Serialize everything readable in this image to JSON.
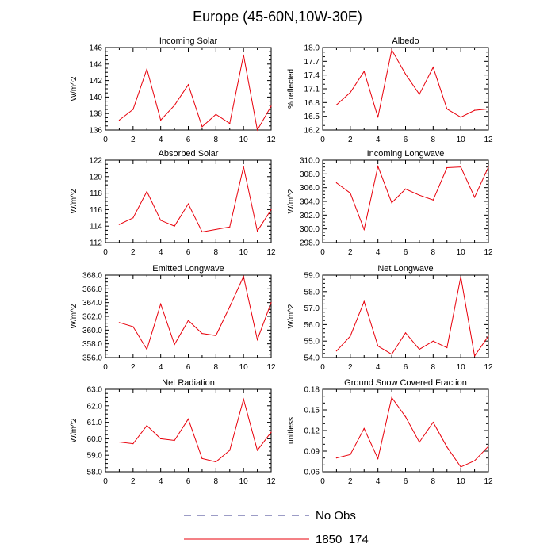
{
  "title": "Europe (45-60N,10W-30E)",
  "legend": [
    {
      "label": "No Obs",
      "style": "dashed",
      "color": "#3a3a8c"
    },
    {
      "label": "1850_174",
      "style": "solid",
      "color": "#e8000b"
    }
  ],
  "chart_data": [
    {
      "type": "line",
      "title": "Incoming Solar",
      "ylabel": "W/m^2",
      "x": [
        1,
        2,
        3,
        4,
        5,
        6,
        7,
        8,
        9,
        10,
        11,
        12
      ],
      "xlim": [
        0,
        12
      ],
      "xticks": [
        0,
        2,
        4,
        6,
        8,
        10,
        12
      ],
      "ylim": [
        136,
        146
      ],
      "yticks": [
        136,
        138,
        140,
        142,
        144,
        146
      ],
      "ydec": 0,
      "series": [
        {
          "name": "1850_174",
          "color": "#e8000b",
          "values": [
            137.2,
            138.5,
            143.4,
            137.2,
            139.0,
            141.5,
            136.4,
            137.9,
            136.8,
            145.1,
            136.0,
            138.9
          ]
        }
      ]
    },
    {
      "type": "line",
      "title": "Albedo",
      "ylabel": "% reflected",
      "x": [
        1,
        2,
        3,
        4,
        5,
        6,
        7,
        8,
        9,
        10,
        11,
        12
      ],
      "xlim": [
        0,
        12
      ],
      "xticks": [
        0,
        2,
        4,
        6,
        8,
        10,
        12
      ],
      "ylim": [
        16.2,
        18.0
      ],
      "yticks": [
        16.2,
        16.5,
        16.8,
        17.1,
        17.4,
        17.7,
        18.0
      ],
      "ydec": 1,
      "series": [
        {
          "name": "1850_174",
          "color": "#e8000b",
          "values": [
            16.75,
            17.02,
            17.48,
            16.48,
            17.95,
            17.42,
            16.98,
            17.57,
            16.66,
            16.48,
            16.63,
            16.66
          ]
        }
      ]
    },
    {
      "type": "line",
      "title": "Absorbed Solar",
      "ylabel": "W/m^2",
      "x": [
        1,
        2,
        3,
        4,
        5,
        6,
        7,
        8,
        9,
        10,
        11,
        12
      ],
      "xlim": [
        0,
        12
      ],
      "xticks": [
        0,
        2,
        4,
        6,
        8,
        10,
        12
      ],
      "ylim": [
        112,
        122
      ],
      "yticks": [
        112,
        114,
        116,
        118,
        120,
        122
      ],
      "ydec": 0,
      "series": [
        {
          "name": "1850_174",
          "color": "#e8000b",
          "values": [
            114.2,
            115.0,
            118.2,
            114.7,
            114.0,
            116.7,
            113.3,
            113.6,
            113.9,
            121.2,
            113.4,
            116.0
          ]
        }
      ]
    },
    {
      "type": "line",
      "title": "Incoming Longwave",
      "ylabel": "W/m^2",
      "x": [
        1,
        2,
        3,
        4,
        5,
        6,
        7,
        8,
        9,
        10,
        11,
        12
      ],
      "xlim": [
        0,
        12
      ],
      "xticks": [
        0,
        2,
        4,
        6,
        8,
        10,
        12
      ],
      "ylim": [
        298,
        310
      ],
      "yticks": [
        298,
        300,
        302,
        304,
        306,
        308,
        310
      ],
      "ydec": 1,
      "series": [
        {
          "name": "1850_174",
          "color": "#e8000b",
          "values": [
            306.7,
            305.2,
            299.9,
            309.1,
            303.8,
            305.8,
            304.9,
            304.2,
            308.9,
            309.0,
            304.6,
            309.0
          ]
        }
      ]
    },
    {
      "type": "line",
      "title": "Emitted Longwave",
      "ylabel": "W/m^2",
      "x": [
        1,
        2,
        3,
        4,
        5,
        6,
        7,
        8,
        9,
        10,
        11,
        12
      ],
      "xlim": [
        0,
        12
      ],
      "xticks": [
        0,
        2,
        4,
        6,
        8,
        10,
        12
      ],
      "ylim": [
        356,
        368
      ],
      "yticks": [
        356,
        358,
        360,
        362,
        364,
        366,
        368
      ],
      "ydec": 1,
      "series": [
        {
          "name": "1850_174",
          "color": "#e8000b",
          "values": [
            361.1,
            360.5,
            357.2,
            363.8,
            357.9,
            361.4,
            359.5,
            359.2,
            363.4,
            367.8,
            358.6,
            364.0
          ]
        }
      ]
    },
    {
      "type": "line",
      "title": "Net Longwave",
      "ylabel": "W/m^2",
      "x": [
        1,
        2,
        3,
        4,
        5,
        6,
        7,
        8,
        9,
        10,
        11,
        12
      ],
      "xlim": [
        0,
        12
      ],
      "xticks": [
        0,
        2,
        4,
        6,
        8,
        10,
        12
      ],
      "ylim": [
        54,
        59
      ],
      "yticks": [
        54,
        55,
        56,
        57,
        58,
        59
      ],
      "ydec": 1,
      "series": [
        {
          "name": "1850_174",
          "color": "#e8000b",
          "values": [
            54.4,
            55.3,
            57.4,
            54.7,
            54.2,
            55.5,
            54.5,
            55.0,
            54.6,
            58.9,
            54.1,
            55.3
          ]
        }
      ]
    },
    {
      "type": "line",
      "title": "Net Radiation",
      "ylabel": "W/m^2",
      "x": [
        1,
        2,
        3,
        4,
        5,
        6,
        7,
        8,
        9,
        10,
        11,
        12
      ],
      "xlim": [
        0,
        12
      ],
      "xticks": [
        0,
        2,
        4,
        6,
        8,
        10,
        12
      ],
      "ylim": [
        58,
        63
      ],
      "yticks": [
        58,
        59,
        60,
        61,
        62,
        63
      ],
      "ydec": 1,
      "series": [
        {
          "name": "1850_174",
          "color": "#e8000b",
          "values": [
            59.8,
            59.7,
            60.8,
            60.0,
            59.9,
            61.2,
            58.8,
            58.6,
            59.3,
            62.4,
            59.3,
            60.4
          ]
        }
      ]
    },
    {
      "type": "line",
      "title": "Ground Snow Covered Fraction",
      "ylabel": "unitless",
      "x": [
        1,
        2,
        3,
        4,
        5,
        6,
        7,
        8,
        9,
        10,
        11,
        12
      ],
      "xlim": [
        0,
        12
      ],
      "xticks": [
        0,
        2,
        4,
        6,
        8,
        10,
        12
      ],
      "ylim": [
        0.06,
        0.18
      ],
      "yticks": [
        0.06,
        0.09,
        0.12,
        0.15,
        0.18
      ],
      "ydec": 2,
      "series": [
        {
          "name": "1850_174",
          "color": "#e8000b",
          "values": [
            0.08,
            0.085,
            0.123,
            0.079,
            0.168,
            0.14,
            0.103,
            0.132,
            0.096,
            0.067,
            0.076,
            0.097
          ]
        }
      ]
    }
  ]
}
